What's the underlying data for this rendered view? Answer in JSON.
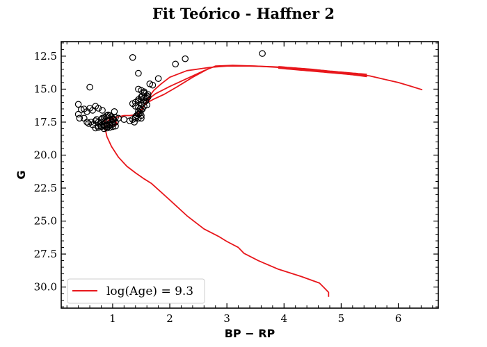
{
  "chart_data": {
    "type": "scatter",
    "title": "Fit Teórico - Haffner 2",
    "xlabel": "BP − RP",
    "ylabel": "G",
    "xlim": [
      0.1,
      6.7
    ],
    "ylim": [
      31.6,
      11.4
    ],
    "y_inverted": true,
    "grid": false,
    "legend_position": "lower-left",
    "x_ticks": [
      1,
      2,
      3,
      4,
      5,
      6
    ],
    "y_ticks": [
      12.5,
      15.0,
      17.5,
      20.0,
      22.5,
      25.0,
      27.5,
      30.0
    ],
    "x_tick_labels": [
      "1",
      "2",
      "3",
      "4",
      "5",
      "6"
    ],
    "y_tick_labels": [
      "12.5",
      "15.0",
      "17.5",
      "20.0",
      "22.5",
      "25.0",
      "27.5",
      "30.0"
    ],
    "colors": {
      "isochrone": "#e8161b",
      "points": "#000000"
    },
    "series": [
      {
        "kind": "scatter",
        "marker": "open-circle",
        "x": [
          0.6,
          0.4,
          0.45,
          0.5,
          0.55,
          0.6,
          0.65,
          0.7,
          0.75,
          0.4,
          0.42,
          0.5,
          0.55,
          0.58,
          0.62,
          0.65,
          0.7,
          0.72,
          0.75,
          0.78,
          0.8,
          0.82,
          0.85,
          0.88,
          0.9,
          0.92,
          0.95,
          0.98,
          1.0,
          1.02,
          1.05,
          0.8,
          0.85,
          0.9,
          0.95,
          1.0,
          0.75,
          0.8,
          0.85,
          0.9,
          0.95,
          1.0,
          1.05,
          0.7,
          0.75,
          0.8,
          0.85,
          0.9,
          0.95,
          1.0,
          0.9,
          0.95,
          1.0,
          1.05,
          0.85,
          0.9,
          0.95,
          1.1,
          1.2,
          1.3,
          1.35,
          1.38,
          1.4,
          1.42,
          1.45,
          1.48,
          1.35,
          1.4,
          1.45,
          1.5,
          1.52,
          1.55,
          1.45,
          1.5,
          1.55,
          1.6,
          1.62,
          1.4,
          1.45,
          1.48,
          1.5,
          1.55,
          1.58,
          1.6,
          1.45,
          1.5,
          1.52,
          1.55,
          1.6,
          1.62,
          1.45,
          1.5,
          1.55,
          1.45,
          1.5,
          1.45,
          1.4,
          1.5,
          1.65,
          1.7,
          1.8,
          1.35,
          1.45,
          2.1,
          2.27,
          3.62,
          0.82,
          1.03
        ],
        "y": [
          14.85,
          16.15,
          16.55,
          16.5,
          16.7,
          16.45,
          16.6,
          16.3,
          16.45,
          16.9,
          17.2,
          17.2,
          17.5,
          17.6,
          17.5,
          17.7,
          17.4,
          17.3,
          17.5,
          17.6,
          17.3,
          17.2,
          17.15,
          17.1,
          17.0,
          16.95,
          17.0,
          17.1,
          17.25,
          17.3,
          17.15,
          17.5,
          17.45,
          17.4,
          17.35,
          17.3,
          17.8,
          17.75,
          17.7,
          17.65,
          17.6,
          17.55,
          17.5,
          17.95,
          17.9,
          17.85,
          17.8,
          17.75,
          17.7,
          17.65,
          17.95,
          17.9,
          17.85,
          17.8,
          18.0,
          17.85,
          17.75,
          17.2,
          17.3,
          17.4,
          17.3,
          17.5,
          17.2,
          17.0,
          16.9,
          16.8,
          16.1,
          16.0,
          15.8,
          15.6,
          15.5,
          15.3,
          15.9,
          15.8,
          15.7,
          15.5,
          15.6,
          16.3,
          16.4,
          16.5,
          16.1,
          16.0,
          15.9,
          15.7,
          16.7,
          16.6,
          16.5,
          16.3,
          16.2,
          15.4,
          15.0,
          15.1,
          15.2,
          16.9,
          17.2,
          17.2,
          17.1,
          17.0,
          14.6,
          14.7,
          14.2,
          12.6,
          13.8,
          13.1,
          12.7,
          12.3,
          16.6,
          16.7
        ]
      },
      {
        "kind": "line",
        "name": "log(Age) = 9.3",
        "segments": [
          {
            "x": [
              4.78,
              4.78,
              4.7,
              4.62,
              4.3,
              3.9,
              3.55,
              3.3,
              3.2,
              3.0,
              2.85,
              2.6,
              2.3,
              2.0,
              1.68,
              1.55,
              1.4,
              1.25,
              1.1,
              0.98,
              0.9,
              0.87,
              0.86,
              0.87,
              0.89,
              0.92,
              0.96,
              1.0,
              1.05,
              1.08,
              1.05,
              0.98,
              0.92,
              0.9,
              0.93,
              1.0,
              1.1,
              1.2,
              1.3,
              1.38,
              1.44,
              1.48,
              1.52,
              1.56,
              1.6,
              1.65,
              1.72,
              1.85,
              2.0,
              2.3,
              2.7,
              3.0,
              3.4,
              3.8,
              4.2,
              4.5,
              4.8,
              5.1,
              5.5,
              5.8,
              6.0,
              6.2,
              6.42
            ],
            "y": [
              30.75,
              30.4,
              30.05,
              29.7,
              29.2,
              28.65,
              28.0,
              27.45,
              27.0,
              26.55,
              26.15,
              25.6,
              24.6,
              23.4,
              22.15,
              21.8,
              21.35,
              20.85,
              20.15,
              19.35,
              18.6,
              18.0,
              17.6,
              17.35,
              17.2,
              17.15,
              17.2,
              17.3,
              17.45,
              17.6,
              17.75,
              17.75,
              17.65,
              17.5,
              17.35,
              17.2,
              17.1,
              17.0,
              17.0,
              16.95,
              16.85,
              16.7,
              16.5,
              16.2,
              15.9,
              15.5,
              15.1,
              14.6,
              14.1,
              13.6,
              13.35,
              13.25,
              13.25,
              13.3,
              13.4,
              13.5,
              13.65,
              13.8,
              14.0,
              14.3,
              14.5,
              14.75,
              15.05
            ]
          },
          {
            "x": [
              1.58,
              1.75,
              2.0,
              2.3,
              2.6,
              2.8,
              3.1,
              3.5,
              3.9,
              4.3,
              4.7,
              5.1,
              5.45
            ],
            "y": [
              15.9,
              15.35,
              14.8,
              14.2,
              13.6,
              13.25,
              13.2,
              13.25,
              13.35,
              13.5,
              13.7,
              13.85,
              14.05
            ]
          },
          {
            "x": [
              1.56,
              1.7,
              1.9,
              2.1,
              2.4,
              2.7
            ],
            "y": [
              16.15,
              15.8,
              15.4,
              14.9,
              14.1,
              13.4
            ]
          }
        ]
      }
    ]
  }
}
